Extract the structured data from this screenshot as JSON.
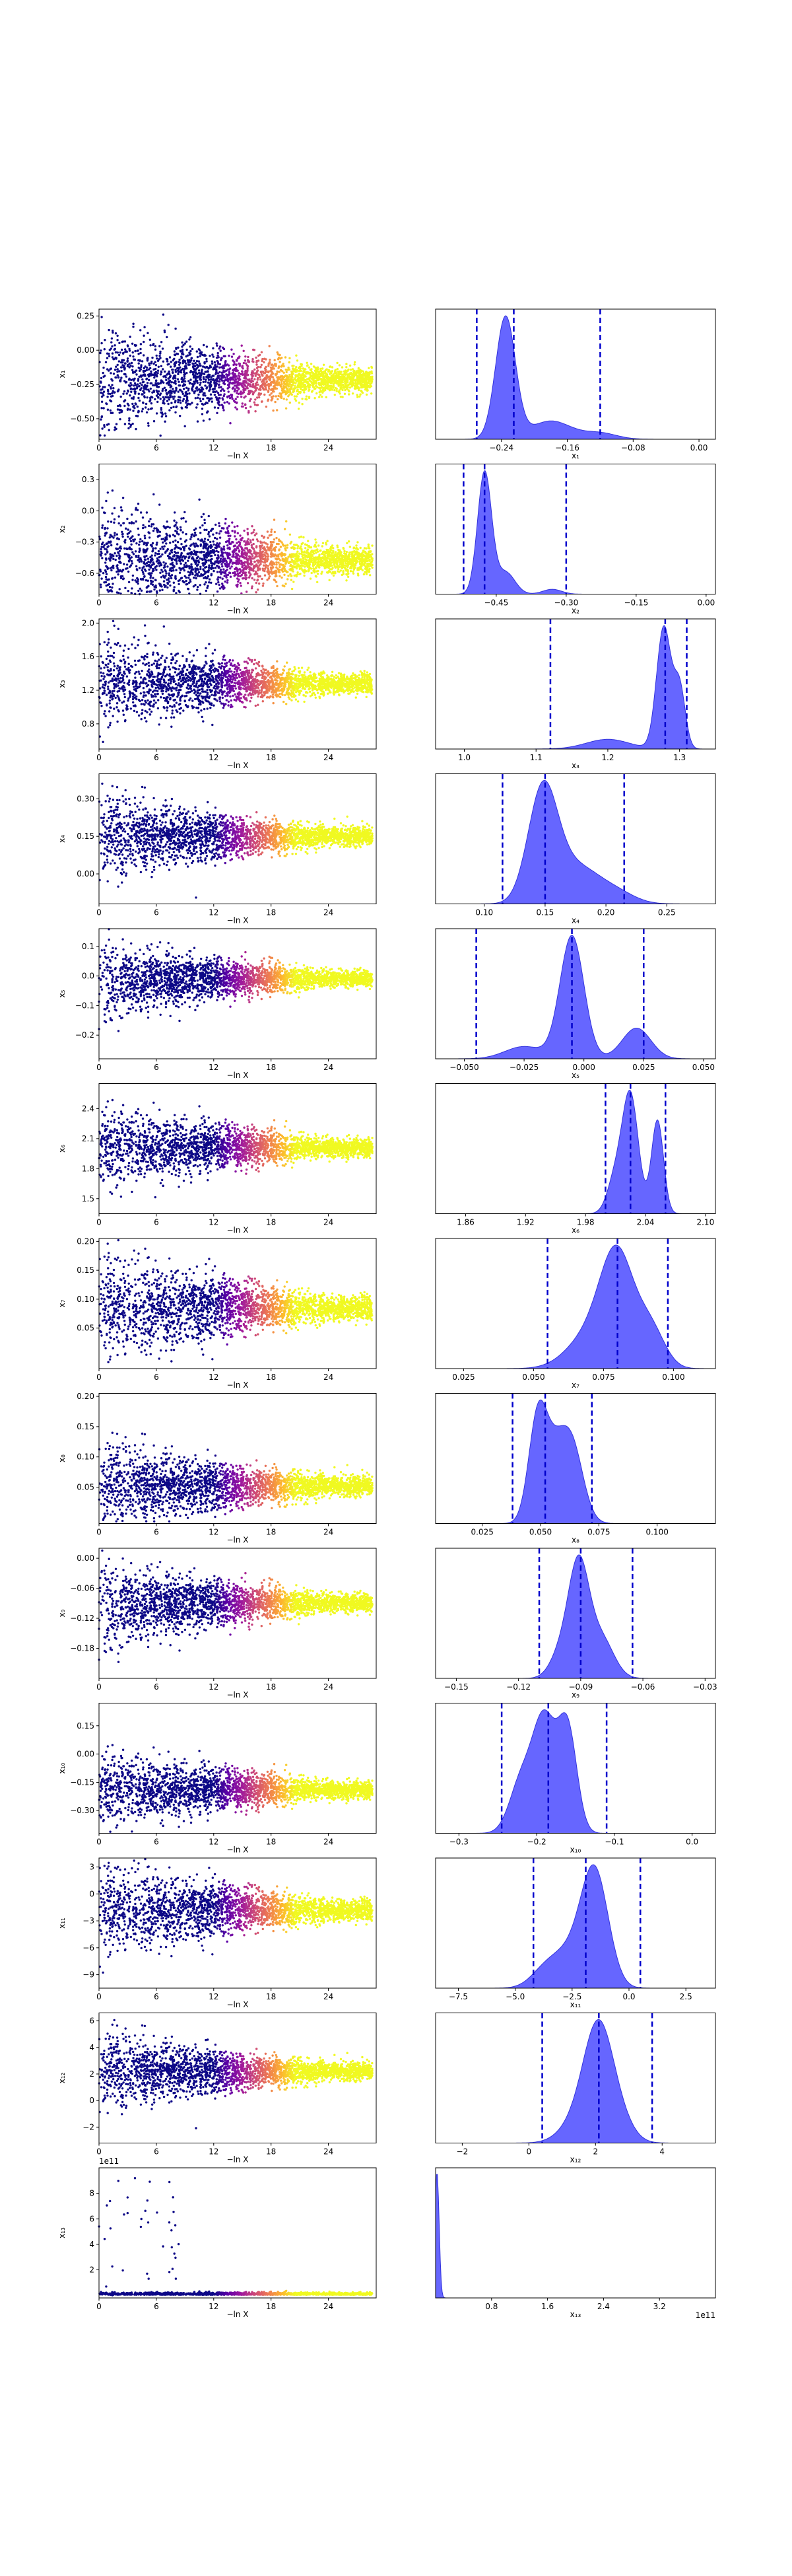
{
  "figure": {
    "background": "#ffffff",
    "scatter_colormap": [
      "#0d0887",
      "#5c01a6",
      "#9c179e",
      "#cc4778",
      "#ed7953",
      "#fdb42f",
      "#f0f921"
    ],
    "kde_fill_color": "#4040ff",
    "kde_line_color": "#3333dd",
    "quantile_line_color": "#0000cc"
  },
  "chart_data": [
    {
      "type": "scatter",
      "param": "x1",
      "ylabel": "x₁",
      "xlabel": "−ln X",
      "xlim": [
        0,
        29
      ],
      "ylim": [
        -0.65,
        0.3
      ],
      "xticks": [
        0,
        6,
        12,
        18,
        24
      ],
      "yticks": [
        -0.5,
        -0.25,
        0,
        0.25
      ],
      "yticklabels": [
        "−0.50",
        "−0.25",
        "0.00",
        "0.25"
      ],
      "posterior_center": -0.22,
      "early_spread": 0.2
    },
    {
      "type": "area",
      "param": "x1",
      "xlabel": "x₁",
      "xlim": [
        -0.32,
        0.02
      ],
      "xticks": [
        -0.24,
        -0.16,
        -0.08,
        0
      ],
      "xticklabels": [
        "−0.24",
        "−0.16",
        "−0.08",
        "0.00"
      ],
      "quantiles": [
        -0.27,
        -0.225,
        -0.12
      ],
      "peaks": [
        [
          -0.235,
          0.012,
          1.0
        ],
        [
          -0.18,
          0.025,
          0.15
        ],
        [
          -0.12,
          0.02,
          0.05
        ]
      ]
    },
    {
      "type": "scatter",
      "param": "x2",
      "ylabel": "x₂",
      "xlabel": "−ln X",
      "xlim": [
        0,
        29
      ],
      "ylim": [
        -0.8,
        0.45
      ],
      "xticks": [
        0,
        6,
        12,
        18,
        24
      ],
      "yticks": [
        -0.6,
        -0.3,
        0,
        0.3
      ],
      "yticklabels": [
        "−0.6",
        "−0.3",
        "0.0",
        "0.3"
      ],
      "posterior_center": -0.47,
      "early_spread": 0.28
    },
    {
      "type": "area",
      "param": "x2",
      "xlabel": "x₂",
      "xlim": [
        -0.58,
        0.02
      ],
      "xticks": [
        -0.45,
        -0.3,
        -0.15,
        0
      ],
      "xticklabels": [
        "−0.45",
        "−0.30",
        "−0.15",
        "0.00"
      ],
      "quantiles": [
        -0.52,
        -0.475,
        -0.3
      ],
      "peaks": [
        [
          -0.475,
          0.015,
          1.0
        ],
        [
          -0.43,
          0.02,
          0.18
        ],
        [
          -0.33,
          0.02,
          0.04
        ]
      ]
    },
    {
      "type": "scatter",
      "param": "x3",
      "ylabel": "x₃",
      "xlabel": "−ln X",
      "xlim": [
        0,
        29
      ],
      "ylim": [
        0.5,
        2.05
      ],
      "xticks": [
        0,
        6,
        12,
        18,
        24
      ],
      "yticks": [
        0.8,
        1.2,
        1.6,
        2.0
      ],
      "yticklabels": [
        "0.8",
        "1.2",
        "1.6",
        "2.0"
      ],
      "posterior_center": 1.28,
      "early_spread": 0.25
    },
    {
      "type": "area",
      "param": "x3",
      "xlabel": "x₃",
      "xlim": [
        0.96,
        1.35
      ],
      "xticks": [
        1.0,
        1.1,
        1.2,
        1.3
      ],
      "xticklabels": [
        "1.0",
        "1.1",
        "1.2",
        "1.3"
      ],
      "quantiles": [
        1.12,
        1.28,
        1.31
      ],
      "peaks": [
        [
          1.278,
          0.01,
          1.0
        ],
        [
          1.3,
          0.008,
          0.5
        ],
        [
          1.2,
          0.03,
          0.08
        ]
      ]
    },
    {
      "type": "scatter",
      "param": "x4",
      "ylabel": "x₄",
      "xlabel": "−ln X",
      "xlim": [
        0,
        29
      ],
      "ylim": [
        -0.12,
        0.4
      ],
      "xticks": [
        0,
        6,
        12,
        18,
        24
      ],
      "yticks": [
        0,
        0.15,
        0.3
      ],
      "yticklabels": [
        "0.00",
        "0.15",
        "0.30"
      ],
      "posterior_center": 0.15,
      "early_spread": 0.08
    },
    {
      "type": "area",
      "param": "x4",
      "xlabel": "x₄",
      "xlim": [
        0.06,
        0.29
      ],
      "xticks": [
        0.1,
        0.15,
        0.2,
        0.25
      ],
      "xticklabels": [
        "0.10",
        "0.15",
        "0.20",
        "0.25"
      ],
      "quantiles": [
        0.115,
        0.15,
        0.215
      ],
      "peaks": [
        [
          0.148,
          0.012,
          1.0
        ],
        [
          0.175,
          0.02,
          0.35
        ],
        [
          0.21,
          0.015,
          0.08
        ]
      ]
    },
    {
      "type": "scatter",
      "param": "x5",
      "ylabel": "x₅",
      "xlabel": "−ln X",
      "xlim": [
        0,
        29
      ],
      "ylim": [
        -0.28,
        0.16
      ],
      "xticks": [
        0,
        6,
        12,
        18,
        24
      ],
      "yticks": [
        -0.2,
        -0.1,
        0,
        0.1
      ],
      "yticklabels": [
        "−0.2",
        "−0.1",
        "0.0",
        "0.1"
      ],
      "posterior_center": -0.01,
      "early_spread": 0.06
    },
    {
      "type": "area",
      "param": "x5",
      "xlabel": "x₅",
      "xlim": [
        -0.062,
        0.055
      ],
      "xticks": [
        -0.05,
        -0.025,
        0,
        0.025,
        0.05
      ],
      "xticklabels": [
        "−0.050",
        "−0.025",
        "0.000",
        "0.025",
        "0.050"
      ],
      "quantiles": [
        -0.045,
        -0.005,
        0.025
      ],
      "peaks": [
        [
          -0.005,
          0.005,
          1.0
        ],
        [
          0.022,
          0.006,
          0.25
        ],
        [
          -0.025,
          0.008,
          0.1
        ]
      ]
    },
    {
      "type": "scatter",
      "param": "x6",
      "ylabel": "x₆",
      "xlabel": "−ln X",
      "xlim": [
        0,
        29
      ],
      "ylim": [
        1.35,
        2.65
      ],
      "xticks": [
        0,
        6,
        12,
        18,
        24
      ],
      "yticks": [
        1.5,
        1.8,
        2.1,
        2.4
      ],
      "yticklabels": [
        "1.5",
        "1.8",
        "2.1",
        "2.4"
      ],
      "posterior_center": 2.01,
      "early_spread": 0.2
    },
    {
      "type": "area",
      "param": "x6",
      "xlabel": "x₆",
      "xlim": [
        1.83,
        2.11
      ],
      "xticks": [
        1.86,
        1.92,
        1.98,
        2.04,
        2.1
      ],
      "xticklabels": [
        "1.86",
        "1.92",
        "1.98",
        "2.04",
        "2.10"
      ],
      "quantiles": [
        2.0,
        2.025,
        2.06
      ],
      "peaks": [
        [
          2.025,
          0.008,
          1.0
        ],
        [
          2.052,
          0.006,
          0.8
        ],
        [
          2.01,
          0.008,
          0.3
        ]
      ]
    },
    {
      "type": "scatter",
      "param": "x7",
      "ylabel": "x₇",
      "xlabel": "−ln X",
      "xlim": [
        0,
        29
      ],
      "ylim": [
        -0.02,
        0.205
      ],
      "xticks": [
        0,
        6,
        12,
        18,
        24
      ],
      "yticks": [
        0.05,
        0.1,
        0.15,
        0.2
      ],
      "yticklabels": [
        "0.05",
        "0.10",
        "0.15",
        "0.20"
      ],
      "posterior_center": 0.085,
      "early_spread": 0.045
    },
    {
      "type": "area",
      "param": "x7",
      "xlabel": "x₇",
      "xlim": [
        0.015,
        0.115
      ],
      "xticks": [
        0.025,
        0.05,
        0.075,
        0.1
      ],
      "xticklabels": [
        "0.025",
        "0.050",
        "0.075",
        "0.100"
      ],
      "quantiles": [
        0.055,
        0.08,
        0.098
      ],
      "peaks": [
        [
          0.08,
          0.006,
          1.0
        ],
        [
          0.07,
          0.008,
          0.3
        ],
        [
          0.092,
          0.005,
          0.35
        ]
      ]
    },
    {
      "type": "scatter",
      "param": "x8",
      "ylabel": "x₈",
      "xlabel": "−ln X",
      "xlim": [
        0,
        29
      ],
      "ylim": [
        -0.01,
        0.205
      ],
      "xticks": [
        0,
        6,
        12,
        18,
        24
      ],
      "yticks": [
        0.05,
        0.1,
        0.15,
        0.2
      ],
      "yticklabels": [
        "0.05",
        "0.10",
        "0.15",
        "0.20"
      ],
      "posterior_center": 0.052,
      "early_spread": 0.035
    },
    {
      "type": "area",
      "param": "x8",
      "xlabel": "x₈",
      "xlim": [
        0.005,
        0.125
      ],
      "xticks": [
        0.025,
        0.05,
        0.075,
        0.1
      ],
      "xticklabels": [
        "0.025",
        "0.050",
        "0.075",
        "0.100"
      ],
      "quantiles": [
        0.038,
        0.052,
        0.072
      ],
      "peaks": [
        [
          0.049,
          0.004,
          1.0
        ],
        [
          0.063,
          0.005,
          0.75
        ],
        [
          0.056,
          0.004,
          0.4
        ]
      ]
    },
    {
      "type": "scatter",
      "param": "x9",
      "ylabel": "x₉",
      "xlabel": "−ln X",
      "xlim": [
        0,
        29
      ],
      "ylim": [
        -0.24,
        0.02
      ],
      "xticks": [
        0,
        6,
        12,
        18,
        24
      ],
      "yticks": [
        -0.18,
        -0.12,
        -0.06,
        0
      ],
      "yticklabels": [
        "−0.18",
        "−0.12",
        "−0.06",
        "0.00"
      ],
      "posterior_center": -0.09,
      "early_spread": 0.04
    },
    {
      "type": "area",
      "param": "x9",
      "xlabel": "x₉",
      "xlim": [
        -0.16,
        -0.025
      ],
      "xticks": [
        -0.15,
        -0.12,
        -0.09,
        -0.06,
        -0.03
      ],
      "xticklabels": [
        "−0.15",
        "−0.12",
        "−0.09",
        "−0.06",
        "−0.03"
      ],
      "quantiles": [
        -0.11,
        -0.09,
        -0.065
      ],
      "peaks": [
        [
          -0.091,
          0.005,
          1.0
        ],
        [
          -0.08,
          0.006,
          0.35
        ],
        [
          -0.1,
          0.005,
          0.2
        ]
      ]
    },
    {
      "type": "scatter",
      "param": "x10",
      "ylabel": "x₁₀",
      "xlabel": "−ln X",
      "xlim": [
        0,
        29
      ],
      "ylim": [
        -0.42,
        0.27
      ],
      "xticks": [
        0,
        6,
        12,
        18,
        24
      ],
      "yticks": [
        -0.3,
        -0.15,
        0,
        0.15
      ],
      "yticklabels": [
        "−0.30",
        "−0.15",
        "0.00",
        "0.15"
      ],
      "posterior_center": -0.19,
      "early_spread": 0.1
    },
    {
      "type": "area",
      "param": "x10",
      "xlabel": "x₁₀",
      "xlim": [
        -0.33,
        0.03
      ],
      "xticks": [
        -0.3,
        -0.2,
        -0.1,
        0
      ],
      "xticklabels": [
        "−0.3",
        "−0.2",
        "−0.1",
        "0.0"
      ],
      "quantiles": [
        -0.245,
        -0.185,
        -0.11
      ],
      "peaks": [
        [
          -0.19,
          0.015,
          1.0
        ],
        [
          -0.16,
          0.012,
          0.9
        ],
        [
          -0.22,
          0.015,
          0.45
        ]
      ]
    },
    {
      "type": "scatter",
      "param": "x11",
      "ylabel": "x₁₁",
      "xlabel": "−ln X",
      "xlim": [
        0,
        29
      ],
      "ylim": [
        -10.5,
        4
      ],
      "xticks": [
        0,
        6,
        12,
        18,
        24
      ],
      "yticks": [
        -9,
        -6,
        -3,
        0,
        3
      ],
      "yticklabels": [
        "−9",
        "−6",
        "−3",
        "0",
        "3"
      ],
      "posterior_center": -1.8,
      "early_spread": 2.5
    },
    {
      "type": "area",
      "param": "x11",
      "xlabel": "x₁₁",
      "xlim": [
        -8.5,
        3.8
      ],
      "xticks": [
        -7.5,
        -5,
        -2.5,
        0,
        2.5
      ],
      "xticklabels": [
        "−7.5",
        "−5.0",
        "−2.5",
        "0.0",
        "2.5"
      ],
      "quantiles": [
        -4.2,
        -1.9,
        0.5
      ],
      "peaks": [
        [
          -1.5,
          0.6,
          1.0
        ],
        [
          -2.7,
          0.8,
          0.3
        ],
        [
          -3.8,
          0.6,
          0.1
        ]
      ]
    },
    {
      "type": "scatter",
      "param": "x12",
      "ylabel": "x₁₂",
      "xlabel": "−ln X",
      "xlim": [
        0,
        29
      ],
      "ylim": [
        -3.2,
        6.6
      ],
      "xticks": [
        0,
        6,
        12,
        18,
        24
      ],
      "yticks": [
        -2,
        0,
        2,
        4,
        6
      ],
      "yticklabels": [
        "−2",
        "0",
        "2",
        "4",
        "6"
      ],
      "posterior_center": 2.2,
      "early_spread": 1.4
    },
    {
      "type": "area",
      "param": "x12",
      "xlabel": "x₁₂",
      "xlim": [
        -2.8,
        5.6
      ],
      "xticks": [
        -2,
        0,
        2,
        4
      ],
      "xticklabels": [
        "−2",
        "0",
        "2",
        "4"
      ],
      "quantiles": [
        0.4,
        2.1,
        3.7
      ],
      "peaks": [
        [
          2.1,
          0.45,
          1.0
        ],
        [
          1.4,
          0.5,
          0.15
        ],
        [
          2.8,
          0.4,
          0.12
        ]
      ]
    },
    {
      "type": "scatter",
      "param": "x13",
      "ylabel": "x₁₃",
      "xlabel": "−ln X",
      "xlim": [
        0,
        29
      ],
      "ylim": [
        -0.2,
        10
      ],
      "xticks": [
        0,
        6,
        12,
        18,
        24
      ],
      "yticks": [
        2,
        4,
        6,
        8
      ],
      "yticklabels": [
        "2",
        "4",
        "6",
        "8"
      ],
      "offset_text": "1e11",
      "posterior_center": 0.2,
      "early_spread": 0.3
    },
    {
      "type": "area",
      "param": "x13",
      "xlabel": "x₁₃",
      "xlim": [
        0,
        4
      ],
      "xticks": [
        0.8,
        1.6,
        2.4,
        3.2
      ],
      "xticklabels": [
        "0.8",
        "1.6",
        "2.4",
        "3.2"
      ],
      "offset_text": "1e11",
      "quantiles": [],
      "peaks": [
        [
          0.02,
          0.03,
          1.0
        ]
      ]
    }
  ]
}
